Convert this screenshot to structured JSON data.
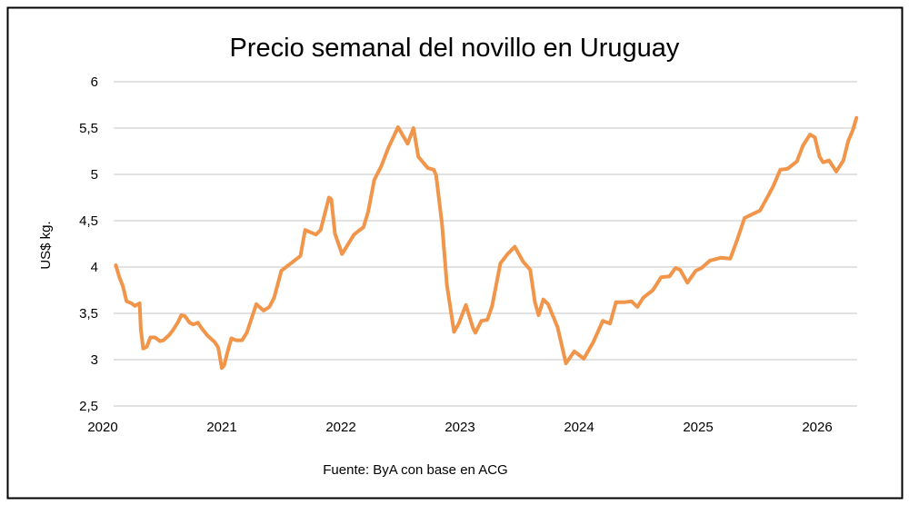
{
  "chart_data": {
    "type": "line",
    "title": "Precio semanal del novillo en Uruguay",
    "xlabel": "",
    "ylabel": "US$ kg.",
    "source": "Fuente: ByA con base en ACG",
    "ylim": [
      2.5,
      6
    ],
    "yticks": [
      2.5,
      3,
      3.5,
      4,
      4.5,
      5,
      5.5,
      6
    ],
    "ytick_labels": [
      "2,5",
      "3",
      "3,5",
      "4",
      "4,5",
      "5",
      "5,5",
      "6"
    ],
    "xticks": [
      2020,
      2021,
      2022,
      2023,
      2024,
      2025,
      2026
    ],
    "xtick_labels": [
      "2020",
      "2021",
      "2022",
      "2023",
      "2024",
      "2025",
      "2026"
    ],
    "grid": "horizontal",
    "legend": "none",
    "color": "#F0954A",
    "series": [
      {
        "x": [
          2020.11,
          2020.14,
          2020.17,
          2020.2,
          2020.24,
          2020.27,
          2020.31,
          2020.32,
          2020.34,
          2020.37,
          2020.4,
          2020.44,
          2020.48,
          2020.51,
          2020.56,
          2020.59,
          2020.63,
          2020.66,
          2020.69,
          2020.73,
          2020.76,
          2020.8,
          2020.83,
          2020.88,
          2020.94,
          2020.97,
          2021.0,
          2021.02,
          2021.05,
          2021.08,
          2021.12,
          2021.17,
          2021.21,
          2021.29,
          2021.35,
          2021.4,
          2021.44,
          2021.5,
          2021.58,
          2021.66,
          2021.7,
          2021.79,
          2021.83,
          2021.9,
          2021.92,
          2021.95,
          2022.01,
          2022.11,
          2022.14,
          2022.19,
          2022.23,
          2022.28,
          2022.34,
          2022.4,
          2022.48,
          2022.56,
          2022.61,
          2022.65,
          2022.73,
          2022.78,
          2022.8,
          2022.85,
          2022.89,
          2022.95,
          2022.99,
          2023.05,
          2023.11,
          2023.13,
          2023.18,
          2023.23,
          2023.27,
          2023.34,
          2023.4,
          2023.46,
          2023.53,
          2023.59,
          2023.63,
          2023.66,
          2023.7,
          2023.74,
          2023.82,
          2023.89,
          2023.96,
          2024.04,
          2024.12,
          2024.2,
          2024.26,
          2024.31,
          2024.38,
          2024.44,
          2024.49,
          2024.54,
          2024.62,
          2024.69,
          2024.76,
          2024.81,
          2024.85,
          2024.91,
          2024.98,
          2025.03,
          2025.1,
          2025.19,
          2025.27,
          2025.33,
          2025.39,
          2025.52,
          2025.58,
          2025.63,
          2025.69,
          2025.75,
          2025.83,
          2025.88,
          2025.94,
          2025.98,
          2026.02,
          2026.05,
          2026.1,
          2026.16,
          2026.22,
          2026.26,
          2026.3,
          2026.33
        ],
        "y": [
          4.02,
          3.89,
          3.79,
          3.63,
          3.61,
          3.58,
          3.61,
          3.33,
          3.12,
          3.14,
          3.24,
          3.24,
          3.2,
          3.21,
          3.27,
          3.32,
          3.4,
          3.48,
          3.47,
          3.4,
          3.38,
          3.4,
          3.34,
          3.26,
          3.19,
          3.13,
          2.91,
          2.94,
          3.09,
          3.23,
          3.21,
          3.21,
          3.29,
          3.6,
          3.53,
          3.57,
          3.67,
          3.96,
          4.04,
          4.12,
          4.4,
          4.35,
          4.4,
          4.75,
          4.73,
          4.36,
          4.14,
          4.35,
          4.38,
          4.43,
          4.6,
          4.94,
          5.09,
          5.29,
          5.51,
          5.33,
          5.5,
          5.19,
          5.07,
          5.05,
          4.99,
          4.46,
          3.81,
          3.3,
          3.39,
          3.59,
          3.34,
          3.29,
          3.42,
          3.43,
          3.58,
          4.04,
          4.14,
          4.22,
          4.06,
          3.97,
          3.62,
          3.48,
          3.65,
          3.6,
          3.35,
          2.96,
          3.09,
          3.01,
          3.19,
          3.42,
          3.39,
          3.62,
          3.62,
          3.63,
          3.57,
          3.67,
          3.75,
          3.89,
          3.9,
          3.99,
          3.97,
          3.83,
          3.96,
          3.99,
          4.07,
          4.1,
          4.09,
          4.3,
          4.53,
          4.61,
          4.75,
          4.87,
          5.05,
          5.06,
          5.14,
          5.31,
          5.43,
          5.4,
          5.19,
          5.13,
          5.15,
          5.03,
          5.15,
          5.36,
          5.48,
          5.61
        ]
      }
    ]
  }
}
